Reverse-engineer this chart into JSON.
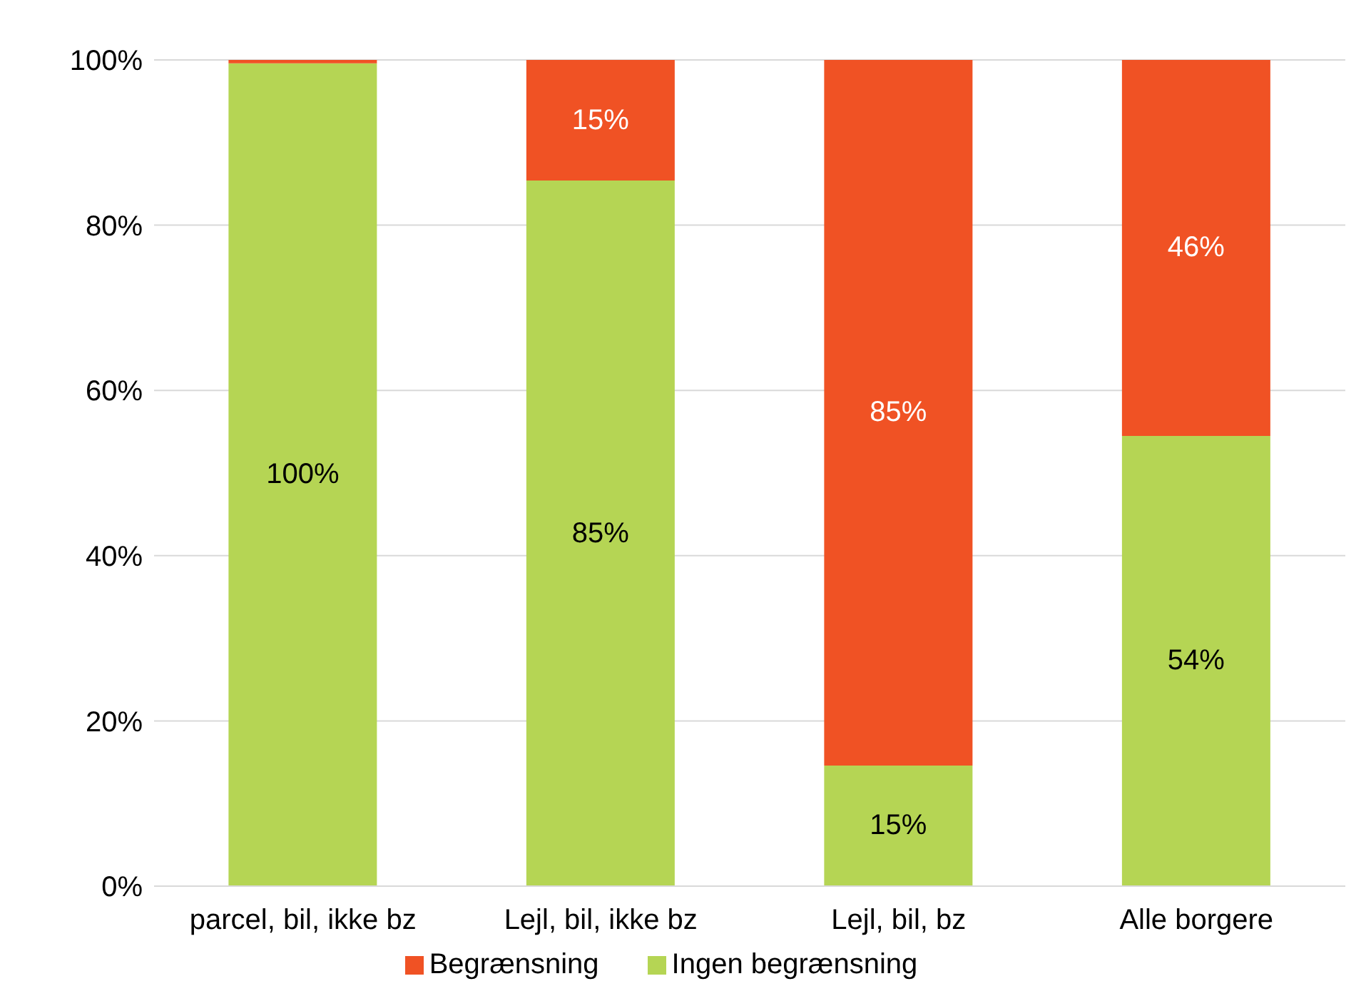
{
  "chart_data": {
    "type": "bar",
    "stacked": true,
    "categories": [
      "parcel, bil, ikke bz",
      "Lejl, bil, ikke bz",
      "Lejl, bil, bz",
      "Alle borgere"
    ],
    "series": [
      {
        "name": "Ingen begrænsning",
        "color": "#b5d554",
        "values": [
          99.6,
          85.4,
          14.6,
          54.5
        ],
        "value_labels": [
          "100%",
          "85%",
          "15%",
          "54%"
        ]
      },
      {
        "name": "Begrænsning",
        "color": "#f05224",
        "values": [
          0.4,
          14.6,
          85.4,
          45.5
        ],
        "value_labels": [
          null,
          "15%",
          "85%",
          "46%"
        ]
      }
    ],
    "ylim": [
      0,
      100
    ],
    "yticks": [
      {
        "value": 0,
        "label": "0%"
      },
      {
        "value": 20,
        "label": "20%"
      },
      {
        "value": 40,
        "label": "40%"
      },
      {
        "value": 60,
        "label": "60%"
      },
      {
        "value": 80,
        "label": "80%"
      },
      {
        "value": 100,
        "label": "100%"
      }
    ],
    "grid": "y",
    "legend": "bottom"
  }
}
